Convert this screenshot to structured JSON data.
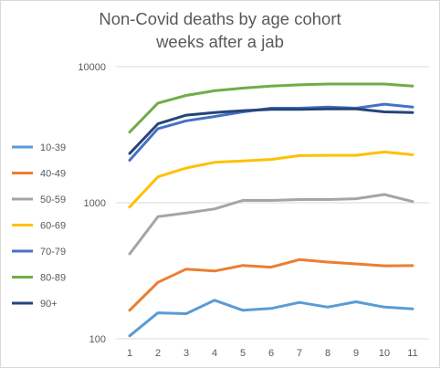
{
  "chart_data": {
    "type": "line",
    "title": [
      "Non-Covid deaths by age cohort",
      "weeks after a jab"
    ],
    "xlabel": "",
    "ylabel": "",
    "yscale": "log",
    "ylim": [
      100,
      10000
    ],
    "y_ticks": [
      "100",
      "1000",
      "10000"
    ],
    "categories": [
      "1",
      "2",
      "3",
      "4",
      "5",
      "6",
      "7",
      "8",
      "9",
      "10",
      "11"
    ],
    "grid": "horizontal",
    "legend_position": "left",
    "series": [
      {
        "name": "10-39",
        "color": "#5b9bd5",
        "values": [
          105,
          155,
          153,
          192,
          162,
          167,
          185,
          171,
          187,
          171,
          166
        ]
      },
      {
        "name": "40-49",
        "color": "#ed7d31",
        "values": [
          162,
          260,
          325,
          315,
          346,
          336,
          382,
          366,
          355,
          344,
          345
        ]
      },
      {
        "name": "50-59",
        "color": "#a5a5a5",
        "values": [
          420,
          790,
          840,
          900,
          1040,
          1040,
          1055,
          1055,
          1070,
          1150,
          1020
        ]
      },
      {
        "name": "60-69",
        "color": "#ffc000",
        "values": [
          930,
          1550,
          1800,
          1980,
          2030,
          2080,
          2220,
          2230,
          2230,
          2360,
          2250
        ]
      },
      {
        "name": "70-79",
        "color": "#4472c4",
        "values": [
          2050,
          3500,
          4000,
          4300,
          4650,
          4950,
          4950,
          5050,
          4950,
          5300,
          5050
        ]
      },
      {
        "name": "80-89",
        "color": "#70ad47",
        "values": [
          3300,
          5400,
          6150,
          6650,
          6950,
          7200,
          7350,
          7450,
          7450,
          7450,
          7200
        ]
      },
      {
        "name": "90+",
        "color": "#264478",
        "values": [
          2300,
          3800,
          4400,
          4600,
          4750,
          4850,
          4850,
          4900,
          4900,
          4650,
          4600
        ]
      }
    ]
  }
}
